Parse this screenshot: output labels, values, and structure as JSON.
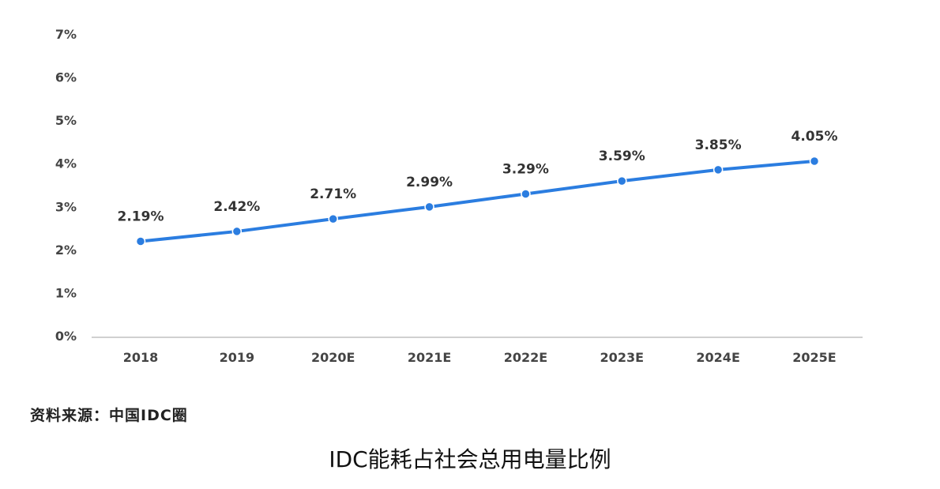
{
  "chart_data": {
    "type": "line",
    "title": "",
    "xlabel": "",
    "ylabel": "",
    "categories": [
      "2018",
      "2019",
      "2020E",
      "2021E",
      "2022E",
      "2023E",
      "2024E",
      "2025E"
    ],
    "values": [
      2.19,
      2.42,
      2.71,
      2.99,
      3.29,
      3.59,
      3.85,
      4.05
    ],
    "data_labels": [
      "2.19%",
      "2.42%",
      "2.71%",
      "2.99%",
      "3.29%",
      "3.59%",
      "3.85%",
      "4.05%"
    ],
    "yticks": [
      "0%",
      "1%",
      "2%",
      "3%",
      "4%",
      "5%",
      "6%",
      "7%"
    ],
    "ylim": [
      0,
      7
    ],
    "grid": false,
    "line_color": "#2b7de0"
  },
  "source": "资料来源：中国IDC圈",
  "caption": "IDC能耗占社会总用电量比例"
}
